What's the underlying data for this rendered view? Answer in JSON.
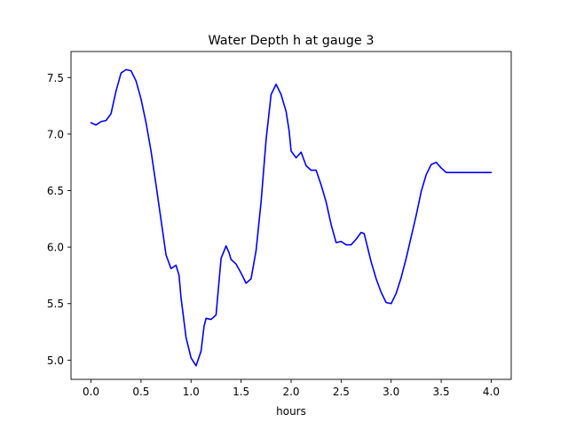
{
  "chart_data": {
    "type": "line",
    "title": "Water Depth h at gauge 3",
    "xlabel": "hours",
    "ylabel": "",
    "xlim": [
      -0.2,
      4.2
    ],
    "ylim": [
      4.83,
      7.73
    ],
    "xticks": [
      0.0,
      0.5,
      1.0,
      1.5,
      2.0,
      2.5,
      3.0,
      3.5,
      4.0
    ],
    "xtick_labels": [
      "0.0",
      "0.5",
      "1.0",
      "1.5",
      "2.0",
      "2.5",
      "3.0",
      "3.5",
      "4.0"
    ],
    "yticks": [
      5.0,
      5.5,
      6.0,
      6.5,
      7.0,
      7.5
    ],
    "ytick_labels": [
      "5.0",
      "5.5",
      "6.0",
      "6.5",
      "7.0",
      "7.5"
    ],
    "grid": false,
    "series": [
      {
        "color": "#0000ff",
        "x": [
          0.0,
          0.05,
          0.1,
          0.15,
          0.2,
          0.25,
          0.3,
          0.35,
          0.4,
          0.45,
          0.5,
          0.55,
          0.6,
          0.65,
          0.7,
          0.75,
          0.8,
          0.85,
          0.88,
          0.9,
          0.95,
          1.0,
          1.05,
          1.1,
          1.13,
          1.15,
          1.2,
          1.25,
          1.3,
          1.35,
          1.38,
          1.4,
          1.45,
          1.5,
          1.55,
          1.6,
          1.65,
          1.7,
          1.75,
          1.8,
          1.85,
          1.9,
          1.95,
          1.98,
          2.0,
          2.05,
          2.1,
          2.15,
          2.2,
          2.25,
          2.3,
          2.35,
          2.4,
          2.45,
          2.5,
          2.55,
          2.6,
          2.65,
          2.7,
          2.73,
          2.75,
          2.8,
          2.85,
          2.9,
          2.95,
          3.0,
          3.05,
          3.1,
          3.15,
          3.2,
          3.25,
          3.3,
          3.35,
          3.4,
          3.45,
          3.5,
          3.55,
          3.6,
          3.65,
          3.7,
          3.75,
          3.8,
          3.85,
          3.9,
          3.95,
          4.0
        ],
        "y": [
          7.1,
          7.08,
          7.11,
          7.12,
          7.18,
          7.38,
          7.54,
          7.57,
          7.56,
          7.47,
          7.31,
          7.1,
          6.85,
          6.55,
          6.24,
          5.93,
          5.81,
          5.84,
          5.75,
          5.55,
          5.2,
          5.02,
          4.95,
          5.08,
          5.3,
          5.37,
          5.36,
          5.4,
          5.9,
          6.01,
          5.95,
          5.89,
          5.85,
          5.77,
          5.68,
          5.72,
          5.97,
          6.4,
          6.95,
          7.35,
          7.44,
          7.35,
          7.2,
          7.03,
          6.85,
          6.79,
          6.84,
          6.72,
          6.68,
          6.68,
          6.55,
          6.4,
          6.2,
          6.04,
          6.05,
          6.02,
          6.02,
          6.07,
          6.13,
          6.12,
          6.05,
          5.87,
          5.72,
          5.6,
          5.51,
          5.5,
          5.59,
          5.73,
          5.9,
          6.09,
          6.28,
          6.49,
          6.64,
          6.73,
          6.75,
          6.7,
          6.66,
          6.66,
          6.66,
          6.66,
          6.66,
          6.66,
          6.66,
          6.66,
          6.66,
          6.66
        ]
      }
    ]
  }
}
